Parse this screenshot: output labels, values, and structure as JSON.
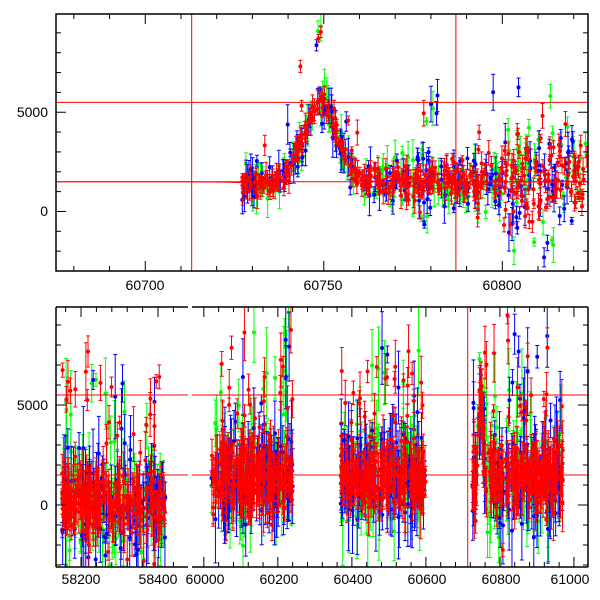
{
  "chart_data": [
    {
      "type": "scatter",
      "panel": "top",
      "title": "",
      "xlabel": "",
      "ylabel": "",
      "xlim": [
        60675,
        60824
      ],
      "ylim": [
        -3000,
        9950
      ],
      "xticks": [
        60700,
        60750,
        60800
      ],
      "xtick_labels": [
        "60700",
        "60750",
        "60800"
      ],
      "yticks": [
        0,
        5000
      ],
      "ytick_labels": [
        "0",
        "5000"
      ],
      "hlines": [
        5500,
        1500
      ],
      "vlines": [
        60713,
        60787
      ],
      "model": {
        "baseline": 1500,
        "peak_time": 60749,
        "peak_amplitude": 4000,
        "width": 4.5
      },
      "observations": {
        "start": 60727,
        "end": 60824
      },
      "series": [
        {
          "name": "blue",
          "color": "#0000ff"
        },
        {
          "name": "green",
          "color": "#00ff00"
        },
        {
          "name": "red",
          "color": "#ff0000"
        }
      ]
    },
    {
      "type": "scatter",
      "panel": "bottom",
      "title": "",
      "xlabel": "",
      "ylabel": "",
      "broken_axis": true,
      "segments": [
        {
          "xlim": [
            58135,
            58478
          ],
          "xticks": [
            58200,
            58400
          ],
          "xtick_labels": [
            "58200",
            "58400"
          ]
        },
        {
          "xlim": [
            59968,
            61038
          ],
          "xticks": [
            60000,
            60200,
            60400,
            60600,
            60800,
            61000
          ],
          "xtick_labels": [
            "60000",
            "60200",
            "60400",
            "60600",
            "60800",
            "61000"
          ]
        }
      ],
      "ylim": [
        -3100,
        9900
      ],
      "yticks": [
        0,
        5000
      ],
      "ytick_labels": [
        "0",
        "5000"
      ],
      "hlines": [
        5500,
        1500
      ],
      "vlines": [
        60713
      ],
      "seasons": [
        [
          58150,
          58420
        ],
        [
          60020,
          60240
        ],
        [
          60370,
          60600
        ],
        [
          60725,
          60970
        ]
      ],
      "series": [
        {
          "name": "blue",
          "color": "#0000ff"
        },
        {
          "name": "green",
          "color": "#00ff00"
        },
        {
          "name": "red",
          "color": "#ff0000"
        }
      ]
    }
  ]
}
